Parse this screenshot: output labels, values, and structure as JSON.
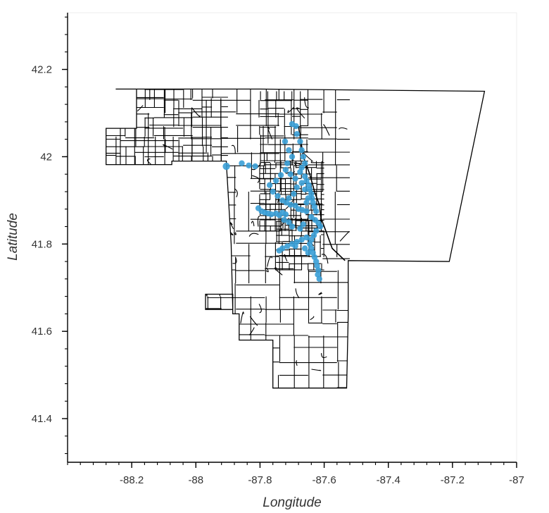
{
  "chart_data": {
    "type": "scatter",
    "xlabel": "Longitude",
    "ylabel": "Latitude",
    "xlim": [
      -88.4,
      -87.0
    ],
    "ylim": [
      41.3,
      42.33
    ],
    "x_ticks": [
      -88.2,
      -88.0,
      -87.8,
      -87.6,
      -87.4,
      -87.2,
      -87.0
    ],
    "x_tick_labels": [
      "-88.2",
      "-88",
      "-87.8",
      "-87.6",
      "-87.4",
      "-87.2",
      "-87"
    ],
    "y_ticks": [
      41.4,
      41.6,
      41.8,
      42.0,
      42.2
    ],
    "y_tick_labels": [
      "41.4",
      "41.6",
      "41.8",
      "42",
      "42.2"
    ],
    "grid": false,
    "point_color": "#3a9fd6",
    "outline_color": "#000000",
    "boundary_outline": [
      [
        -88.25,
        42.155
      ],
      [
        -87.86,
        42.155
      ],
      [
        -87.8,
        42.155
      ],
      [
        -87.1,
        42.15
      ],
      [
        -87.21,
        41.76
      ],
      [
        -87.525,
        41.762
      ],
      [
        -87.525,
        41.635
      ],
      [
        -87.53,
        41.47
      ],
      [
        -87.76,
        41.47
      ],
      [
        -87.76,
        41.58
      ],
      [
        -87.865,
        41.58
      ],
      [
        -87.865,
        41.64
      ],
      [
        -87.885,
        41.64
      ],
      [
        -87.885,
        41.685
      ],
      [
        -87.97,
        41.685
      ],
      [
        -87.97,
        41.65
      ],
      [
        -87.885,
        41.65
      ],
      [
        -87.89,
        41.8
      ],
      [
        -87.905,
        41.985
      ],
      [
        -87.905,
        41.99
      ],
      [
        -88.075,
        41.99
      ],
      [
        -88.075,
        41.982
      ],
      [
        -88.28,
        41.982
      ],
      [
        -88.28,
        42.065
      ],
      [
        -88.185,
        42.065
      ],
      [
        -88.185,
        42.155
      ]
    ],
    "neighborhood_cluster_points": [
      [
        -87.905,
        41.978
      ],
      [
        -87.857,
        41.985
      ],
      [
        -87.835,
        41.98
      ],
      [
        -87.815,
        41.978
      ],
      [
        -87.7,
        42.075
      ],
      [
        -87.688,
        42.07
      ],
      [
        -87.685,
        42.052
      ],
      [
        -87.675,
        42.035
      ],
      [
        -87.67,
        42.015
      ],
      [
        -87.665,
        42.0
      ],
      [
        -87.66,
        41.985
      ],
      [
        -87.67,
        41.975
      ],
      [
        -87.675,
        41.965
      ],
      [
        -87.66,
        41.955
      ],
      [
        -87.655,
        41.945
      ],
      [
        -87.648,
        41.935
      ],
      [
        -87.645,
        41.925
      ],
      [
        -87.64,
        41.915
      ],
      [
        -87.638,
        41.905
      ],
      [
        -87.635,
        41.895
      ],
      [
        -87.63,
        41.885
      ],
      [
        -87.625,
        41.875
      ],
      [
        -87.722,
        42.035
      ],
      [
        -87.71,
        42.015
      ],
      [
        -87.7,
        42.0
      ],
      [
        -87.715,
        41.985
      ],
      [
        -87.72,
        41.97
      ],
      [
        -87.735,
        41.958
      ],
      [
        -87.75,
        41.945
      ],
      [
        -87.77,
        41.935
      ],
      [
        -87.76,
        41.92
      ],
      [
        -87.745,
        41.91
      ],
      [
        -87.73,
        41.9
      ],
      [
        -87.718,
        41.895
      ],
      [
        -87.705,
        41.89
      ],
      [
        -87.69,
        41.888
      ],
      [
        -87.68,
        41.88
      ],
      [
        -87.668,
        41.878
      ],
      [
        -87.655,
        41.875
      ],
      [
        -87.805,
        41.882
      ],
      [
        -87.795,
        41.875
      ],
      [
        -87.785,
        41.872
      ],
      [
        -87.775,
        41.87
      ],
      [
        -87.765,
        41.868
      ],
      [
        -87.75,
        41.87
      ],
      [
        -87.74,
        41.866
      ],
      [
        -87.73,
        41.872
      ],
      [
        -87.72,
        41.868
      ],
      [
        -87.64,
        41.862
      ],
      [
        -87.628,
        41.855
      ],
      [
        -87.618,
        41.848
      ],
      [
        -87.612,
        41.84
      ],
      [
        -87.625,
        41.83
      ],
      [
        -87.632,
        41.82
      ],
      [
        -87.64,
        41.81
      ],
      [
        -87.645,
        41.8
      ],
      [
        -87.64,
        41.79
      ],
      [
        -87.635,
        41.78
      ],
      [
        -87.63,
        41.77
      ],
      [
        -87.625,
        41.76
      ],
      [
        -87.622,
        41.75
      ],
      [
        -87.618,
        41.74
      ],
      [
        -87.62,
        41.73
      ],
      [
        -87.615,
        41.72
      ],
      [
        -87.655,
        41.815
      ],
      [
        -87.67,
        41.81
      ],
      [
        -87.685,
        41.805
      ],
      [
        -87.7,
        41.8
      ],
      [
        -87.715,
        41.795
      ],
      [
        -87.73,
        41.79
      ],
      [
        -87.74,
        41.785
      ],
      [
        -87.69,
        41.795
      ],
      [
        -87.66,
        41.79
      ],
      [
        -87.65,
        41.78
      ],
      [
        -87.7,
        41.84
      ],
      [
        -87.71,
        41.85
      ],
      [
        -87.725,
        41.855
      ],
      [
        -87.665,
        41.845
      ],
      [
        -87.675,
        41.835
      ],
      [
        -87.66,
        41.925
      ],
      [
        -87.67,
        41.94
      ],
      [
        -87.69,
        41.95
      ],
      [
        -87.705,
        41.96
      ],
      [
        -87.685,
        41.93
      ],
      [
        -87.695,
        41.915
      ],
      [
        -87.71,
        41.905
      ],
      [
        -87.655,
        41.895
      ],
      [
        -87.65,
        41.905
      ]
    ]
  }
}
